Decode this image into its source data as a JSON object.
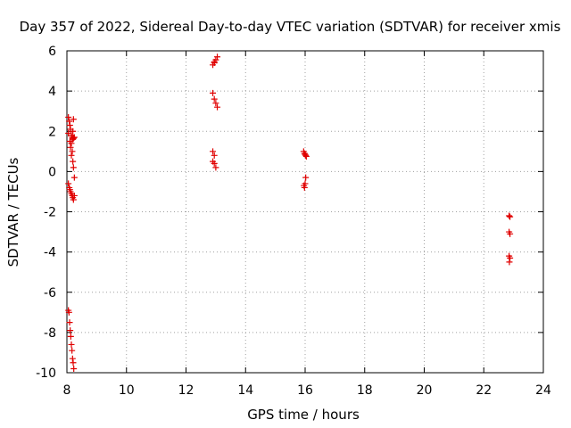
{
  "chart_data": {
    "type": "scatter",
    "title": "Day 357 of 2022, Sidereal Day-to-day VTEC variation (SDTVAR) for receiver xmis",
    "xlabel": "GPS time / hours",
    "ylabel": "SDTVAR / TECUs",
    "xlim": [
      8,
      24
    ],
    "ylim": [
      -10,
      6
    ],
    "xticks": [
      8,
      10,
      12,
      14,
      16,
      18,
      20,
      22,
      24
    ],
    "yticks": [
      -10,
      -8,
      -6,
      -4,
      -2,
      0,
      2,
      4,
      6
    ],
    "grid": true,
    "marker": "+",
    "color": "#e00000",
    "points": [
      [
        8.05,
        2.7
      ],
      [
        8.08,
        2.5
      ],
      [
        8.1,
        2.3
      ],
      [
        8.12,
        2.1
      ],
      [
        8.05,
        1.9
      ],
      [
        8.15,
        1.8
      ],
      [
        8.18,
        1.7
      ],
      [
        8.2,
        1.6
      ],
      [
        8.22,
        1.65
      ],
      [
        8.25,
        1.7
      ],
      [
        8.1,
        1.5
      ],
      [
        8.12,
        1.2
      ],
      [
        8.15,
        0.8
      ],
      [
        8.18,
        1.0
      ],
      [
        8.2,
        0.5
      ],
      [
        8.22,
        0.2
      ],
      [
        8.25,
        -0.3
      ],
      [
        8.15,
        1.4
      ],
      [
        8.2,
        2.0
      ],
      [
        8.22,
        2.6
      ],
      [
        8.05,
        -0.6
      ],
      [
        8.08,
        -0.8
      ],
      [
        8.1,
        -0.9
      ],
      [
        8.12,
        -1.0
      ],
      [
        8.15,
        -1.1
      ],
      [
        8.18,
        -1.2
      ],
      [
        8.2,
        -1.3
      ],
      [
        8.22,
        -1.4
      ],
      [
        8.25,
        -1.2
      ],
      [
        8.05,
        -6.9
      ],
      [
        8.07,
        -7.0
      ],
      [
        8.09,
        -7.5
      ],
      [
        8.11,
        -7.9
      ],
      [
        8.13,
        -8.2
      ],
      [
        8.15,
        -8.6
      ],
      [
        8.17,
        -8.9
      ],
      [
        8.19,
        -9.3
      ],
      [
        8.21,
        -9.5
      ],
      [
        8.23,
        -9.8
      ],
      [
        12.9,
        5.3
      ],
      [
        12.95,
        5.45
      ],
      [
        13.0,
        5.55
      ],
      [
        13.05,
        5.7
      ],
      [
        12.95,
        5.4
      ],
      [
        12.9,
        3.9
      ],
      [
        12.95,
        3.6
      ],
      [
        13.0,
        3.4
      ],
      [
        13.05,
        3.2
      ],
      [
        12.9,
        1.0
      ],
      [
        12.95,
        0.8
      ],
      [
        12.9,
        0.5
      ],
      [
        12.95,
        0.4
      ],
      [
        13.0,
        0.2
      ],
      [
        15.95,
        1.0
      ],
      [
        15.98,
        0.9
      ],
      [
        16.0,
        0.85
      ],
      [
        16.02,
        0.8
      ],
      [
        16.04,
        0.75
      ],
      [
        15.96,
        -0.7
      ],
      [
        15.98,
        -0.8
      ],
      [
        16.0,
        -0.6
      ],
      [
        16.02,
        -0.3
      ],
      [
        22.85,
        -2.2
      ],
      [
        22.88,
        -2.25
      ],
      [
        22.85,
        -3.0
      ],
      [
        22.88,
        -3.1
      ],
      [
        22.85,
        -4.2
      ],
      [
        22.88,
        -4.3
      ],
      [
        22.86,
        -4.5
      ]
    ]
  }
}
